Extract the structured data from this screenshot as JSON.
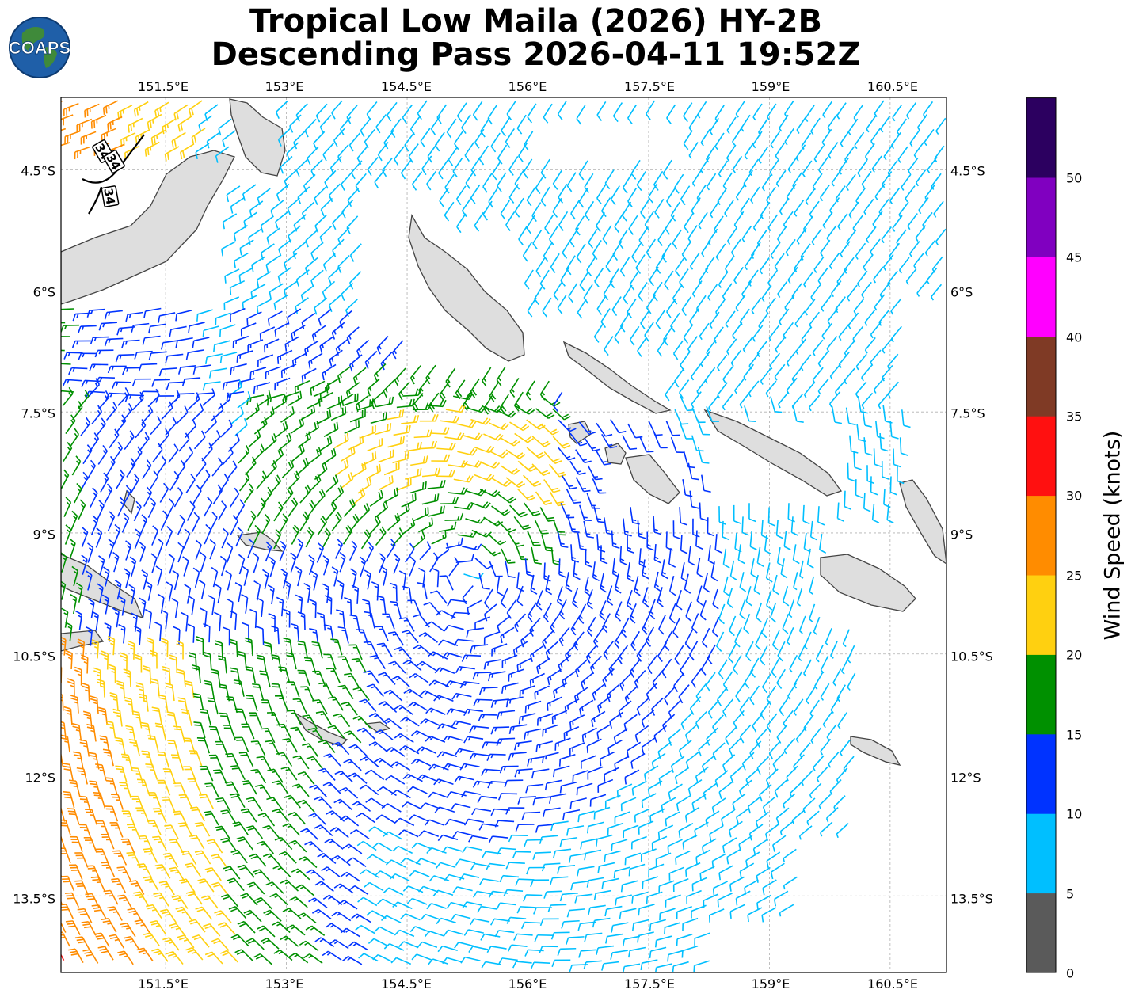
{
  "title": {
    "line1": "Tropical Low Maila (2026) HY-2B",
    "line2": "Descending Pass 2026-04-11 19:52Z"
  },
  "logo": {
    "text": "COAPS",
    "icon": "globe-icon"
  },
  "map": {
    "lon_ticks": [
      "151.5°E",
      "153°E",
      "154.5°E",
      "156°E",
      "157.5°E",
      "159°E",
      "160.5°E"
    ],
    "lat_ticks": [
      "4.5°S",
      "6°S",
      "7.5°S",
      "9°S",
      "10.5°S",
      "12°S",
      "13.5°S"
    ],
    "lon_range": [
      150.2,
      161.2
    ],
    "lat_range": [
      -3.6,
      -14.45
    ],
    "storm_center": {
      "lon": 155.2,
      "lat": -9.6
    },
    "gridlines": true,
    "contour_labels": [
      "34",
      "34",
      "34"
    ]
  },
  "colorbar": {
    "label": "Wind Speed (knots)",
    "ticks": [
      "0",
      "5",
      "10",
      "15",
      "20",
      "25",
      "30",
      "35",
      "40",
      "45",
      "50"
    ],
    "bins": [
      {
        "min": 0,
        "max": 5,
        "color": "#5a5a5a"
      },
      {
        "min": 5,
        "max": 10,
        "color": "#00bfff"
      },
      {
        "min": 10,
        "max": 15,
        "color": "#0033ff"
      },
      {
        "min": 15,
        "max": 20,
        "color": "#009000"
      },
      {
        "min": 20,
        "max": 25,
        "color": "#ffd010"
      },
      {
        "min": 25,
        "max": 30,
        "color": "#ff8c00"
      },
      {
        "min": 30,
        "max": 35,
        "color": "#ff1010"
      },
      {
        "min": 35,
        "max": 40,
        "color": "#7f3a25"
      },
      {
        "min": 40,
        "max": 45,
        "color": "#ff00ff"
      },
      {
        "min": 45,
        "max": 50,
        "color": "#8000c0"
      },
      {
        "min": 50,
        "max": 55,
        "color": "#2c0060"
      }
    ]
  }
}
